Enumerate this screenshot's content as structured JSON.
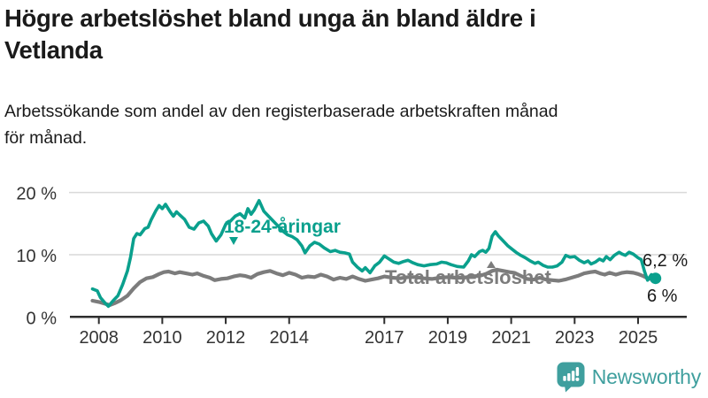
{
  "header": {
    "title": "Högre arbetslöshet bland unga än bland äldre i\nVetlanda",
    "subtitle": "Arbetssökande som andel av den registerbaserade arbetskraften månad\nför månad."
  },
  "colors": {
    "young_line": "#0aa08d",
    "total_line": "#7c7c7c",
    "grid": "#d9d9d9",
    "axis": "#2e2e2e",
    "tick_text": "#333333",
    "value_text": "#1a1a1a",
    "brand_teal": "#3f9f9e"
  },
  "chart_data": {
    "type": "line",
    "title": "Högre arbetslöshet bland unga än bland äldre i Vetlanda",
    "xlabel": "",
    "ylabel": "",
    "x_unit": "decimal_year",
    "xlim": [
      2007.75,
      2025.8
    ],
    "ylim": [
      0,
      20
    ],
    "grid": "horizontal-only",
    "legend": "inline-labels",
    "x_ticks": [
      2008,
      2010,
      2012,
      2014,
      2017,
      2019,
      2021,
      2023,
      2025
    ],
    "y_ticks": [
      {
        "value": 0,
        "label": "0 %"
      },
      {
        "value": 10,
        "label": "10 %"
      },
      {
        "value": 20,
        "label": "20 %"
      }
    ],
    "series": [
      {
        "name": "18-24-åringar",
        "color": "#0aa08d",
        "end_label": "6,2 %",
        "end_value": 6.2,
        "end_dot": true,
        "points": [
          [
            2007.8,
            4.5
          ],
          [
            2007.95,
            4.2
          ],
          [
            2008.05,
            3.1
          ],
          [
            2008.2,
            2.2
          ],
          [
            2008.3,
            1.7
          ],
          [
            2008.45,
            2.6
          ],
          [
            2008.6,
            3.4
          ],
          [
            2008.75,
            5.2
          ],
          [
            2008.9,
            7.4
          ],
          [
            2009.0,
            9.6
          ],
          [
            2009.1,
            12.6
          ],
          [
            2009.2,
            13.4
          ],
          [
            2009.3,
            13.2
          ],
          [
            2009.45,
            14.2
          ],
          [
            2009.55,
            14.4
          ],
          [
            2009.65,
            15.6
          ],
          [
            2009.8,
            17.1
          ],
          [
            2009.9,
            17.9
          ],
          [
            2010.0,
            17.4
          ],
          [
            2010.1,
            18.1
          ],
          [
            2010.25,
            16.9
          ],
          [
            2010.35,
            16.2
          ],
          [
            2010.45,
            16.9
          ],
          [
            2010.55,
            16.4
          ],
          [
            2010.7,
            15.7
          ],
          [
            2010.85,
            14.4
          ],
          [
            2011.0,
            14.1
          ],
          [
            2011.15,
            15.1
          ],
          [
            2011.3,
            15.4
          ],
          [
            2011.45,
            14.6
          ],
          [
            2011.55,
            13.4
          ],
          [
            2011.7,
            12.2
          ],
          [
            2011.85,
            13.2
          ],
          [
            2012.0,
            14.9
          ],
          [
            2012.15,
            15.4
          ],
          [
            2012.3,
            16.2
          ],
          [
            2012.45,
            16.6
          ],
          [
            2012.6,
            15.9
          ],
          [
            2012.7,
            17.4
          ],
          [
            2012.8,
            16.5
          ],
          [
            2012.9,
            17.2
          ],
          [
            2013.05,
            18.7
          ],
          [
            2013.2,
            17.0
          ],
          [
            2013.35,
            16.2
          ],
          [
            2013.5,
            15.4
          ],
          [
            2013.65,
            14.6
          ],
          [
            2013.8,
            13.8
          ],
          [
            2013.95,
            13.2
          ],
          [
            2014.1,
            12.9
          ],
          [
            2014.25,
            12.4
          ],
          [
            2014.4,
            11.4
          ],
          [
            2014.5,
            10.3
          ],
          [
            2014.65,
            11.4
          ],
          [
            2014.8,
            12.0
          ],
          [
            2014.95,
            11.7
          ],
          [
            2015.1,
            11.1
          ],
          [
            2015.3,
            10.5
          ],
          [
            2015.45,
            10.7
          ],
          [
            2015.6,
            10.4
          ],
          [
            2015.75,
            10.3
          ],
          [
            2015.9,
            10.1
          ],
          [
            2016.0,
            8.8
          ],
          [
            2016.15,
            8.0
          ],
          [
            2016.3,
            7.4
          ],
          [
            2016.4,
            7.9
          ],
          [
            2016.55,
            7.1
          ],
          [
            2016.7,
            8.2
          ],
          [
            2016.85,
            8.8
          ],
          [
            2017.0,
            9.8
          ],
          [
            2017.15,
            9.3
          ],
          [
            2017.3,
            8.8
          ],
          [
            2017.45,
            8.6
          ],
          [
            2017.6,
            8.9
          ],
          [
            2017.75,
            9.1
          ],
          [
            2017.9,
            8.7
          ],
          [
            2018.05,
            8.4
          ],
          [
            2018.25,
            8.2
          ],
          [
            2018.45,
            8.4
          ],
          [
            2018.65,
            8.5
          ],
          [
            2018.8,
            8.8
          ],
          [
            2018.95,
            8.7
          ],
          [
            2019.1,
            8.4
          ],
          [
            2019.3,
            8.1
          ],
          [
            2019.5,
            8.0
          ],
          [
            2019.65,
            9.0
          ],
          [
            2019.75,
            10.0
          ],
          [
            2019.85,
            9.7
          ],
          [
            2020.0,
            10.5
          ],
          [
            2020.1,
            10.7
          ],
          [
            2020.2,
            10.4
          ],
          [
            2020.3,
            11.0
          ],
          [
            2020.4,
            13.0
          ],
          [
            2020.5,
            13.7
          ],
          [
            2020.6,
            13.0
          ],
          [
            2020.75,
            12.2
          ],
          [
            2020.9,
            11.4
          ],
          [
            2021.0,
            11.0
          ],
          [
            2021.15,
            10.4
          ],
          [
            2021.3,
            9.9
          ],
          [
            2021.45,
            9.5
          ],
          [
            2021.6,
            9.0
          ],
          [
            2021.75,
            8.6
          ],
          [
            2021.85,
            8.8
          ],
          [
            2022.0,
            8.3
          ],
          [
            2022.15,
            8.0
          ],
          [
            2022.3,
            8.0
          ],
          [
            2022.45,
            8.2
          ],
          [
            2022.6,
            8.8
          ],
          [
            2022.72,
            9.9
          ],
          [
            2022.85,
            9.6
          ],
          [
            2023.0,
            9.7
          ],
          [
            2023.15,
            9.1
          ],
          [
            2023.3,
            8.7
          ],
          [
            2023.42,
            9.0
          ],
          [
            2023.52,
            8.5
          ],
          [
            2023.65,
            8.8
          ],
          [
            2023.78,
            9.3
          ],
          [
            2023.9,
            9.0
          ],
          [
            2024.0,
            9.7
          ],
          [
            2024.12,
            9.2
          ],
          [
            2024.25,
            9.9
          ],
          [
            2024.4,
            10.4
          ],
          [
            2024.5,
            10.1
          ],
          [
            2024.6,
            9.9
          ],
          [
            2024.72,
            10.4
          ],
          [
            2024.85,
            10.1
          ],
          [
            2025.0,
            9.5
          ],
          [
            2025.1,
            9.2
          ],
          [
            2025.2,
            7.4
          ],
          [
            2025.3,
            5.9
          ],
          [
            2025.42,
            6.8
          ],
          [
            2025.55,
            6.2
          ]
        ]
      },
      {
        "name": "Total arbetslöshet",
        "color": "#7c7c7c",
        "end_label": "6 %",
        "end_value": 6.0,
        "end_dot": false,
        "points": [
          [
            2007.8,
            2.6
          ],
          [
            2008.0,
            2.4
          ],
          [
            2008.2,
            2.1
          ],
          [
            2008.35,
            1.9
          ],
          [
            2008.5,
            2.2
          ],
          [
            2008.7,
            2.7
          ],
          [
            2008.9,
            3.4
          ],
          [
            2009.1,
            4.6
          ],
          [
            2009.3,
            5.6
          ],
          [
            2009.5,
            6.2
          ],
          [
            2009.7,
            6.4
          ],
          [
            2009.9,
            6.9
          ],
          [
            2010.05,
            7.2
          ],
          [
            2010.2,
            7.3
          ],
          [
            2010.4,
            7.0
          ],
          [
            2010.55,
            7.2
          ],
          [
            2010.75,
            7.0
          ],
          [
            2010.95,
            6.8
          ],
          [
            2011.1,
            7.0
          ],
          [
            2011.3,
            6.6
          ],
          [
            2011.5,
            6.3
          ],
          [
            2011.65,
            5.9
          ],
          [
            2011.85,
            6.1
          ],
          [
            2012.05,
            6.2
          ],
          [
            2012.25,
            6.5
          ],
          [
            2012.45,
            6.7
          ],
          [
            2012.6,
            6.6
          ],
          [
            2012.8,
            6.3
          ],
          [
            2013.0,
            6.9
          ],
          [
            2013.2,
            7.2
          ],
          [
            2013.4,
            7.4
          ],
          [
            2013.6,
            7.0
          ],
          [
            2013.8,
            6.7
          ],
          [
            2014.0,
            7.1
          ],
          [
            2014.2,
            6.8
          ],
          [
            2014.4,
            6.3
          ],
          [
            2014.6,
            6.5
          ],
          [
            2014.8,
            6.4
          ],
          [
            2015.0,
            6.8
          ],
          [
            2015.2,
            6.5
          ],
          [
            2015.4,
            6.0
          ],
          [
            2015.6,
            6.3
          ],
          [
            2015.8,
            6.1
          ],
          [
            2016.0,
            6.5
          ],
          [
            2016.2,
            6.1
          ],
          [
            2016.4,
            5.8
          ],
          [
            2016.6,
            6.0
          ],
          [
            2016.8,
            6.2
          ],
          [
            2017.0,
            6.5
          ],
          [
            2017.25,
            6.3
          ],
          [
            2017.5,
            6.2
          ],
          [
            2017.75,
            6.4
          ],
          [
            2018.0,
            6.4
          ],
          [
            2018.25,
            6.2
          ],
          [
            2018.5,
            6.1
          ],
          [
            2018.75,
            6.3
          ],
          [
            2019.0,
            6.4
          ],
          [
            2019.25,
            6.3
          ],
          [
            2019.5,
            6.3
          ],
          [
            2019.75,
            6.5
          ],
          [
            2020.0,
            6.6
          ],
          [
            2020.2,
            6.9
          ],
          [
            2020.4,
            7.4
          ],
          [
            2020.55,
            7.6
          ],
          [
            2020.75,
            7.4
          ],
          [
            2020.95,
            7.2
          ],
          [
            2021.1,
            7.1
          ],
          [
            2021.3,
            6.6
          ],
          [
            2021.5,
            6.1
          ],
          [
            2021.7,
            6.0
          ],
          [
            2021.9,
            6.3
          ],
          [
            2022.1,
            6.0
          ],
          [
            2022.3,
            5.9
          ],
          [
            2022.5,
            5.8
          ],
          [
            2022.7,
            6.0
          ],
          [
            2022.9,
            6.3
          ],
          [
            2023.1,
            6.6
          ],
          [
            2023.3,
            7.0
          ],
          [
            2023.5,
            7.2
          ],
          [
            2023.65,
            7.3
          ],
          [
            2023.8,
            7.0
          ],
          [
            2023.95,
            6.8
          ],
          [
            2024.1,
            7.1
          ],
          [
            2024.3,
            6.8
          ],
          [
            2024.5,
            7.1
          ],
          [
            2024.65,
            7.2
          ],
          [
            2024.85,
            7.1
          ],
          [
            2025.0,
            6.9
          ],
          [
            2025.15,
            6.6
          ],
          [
            2025.3,
            6.2
          ],
          [
            2025.5,
            6.0
          ]
        ]
      }
    ]
  },
  "footer": {
    "brand": "Newsworthy",
    "logo_icon": "newsworthy-speech-bubble-bar-chart-icon"
  }
}
